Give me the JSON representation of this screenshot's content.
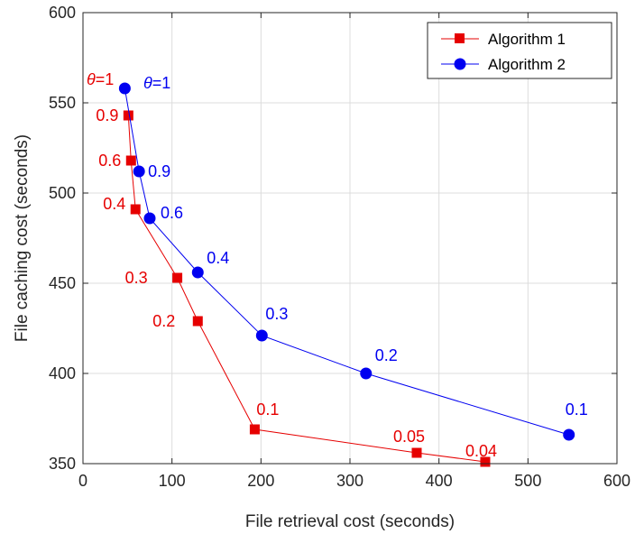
{
  "chart_data": {
    "type": "line",
    "xlabel": "File retrieval cost (seconds)",
    "ylabel": "File caching cost (seconds)",
    "xlim": [
      0,
      600
    ],
    "ylim": [
      350,
      600
    ],
    "xticks": [
      0,
      100,
      200,
      300,
      400,
      500,
      600
    ],
    "yticks": [
      350,
      400,
      450,
      500,
      550,
      600
    ],
    "grid": true,
    "legend_position": "top-right",
    "series": [
      {
        "name": "Algorithm 1",
        "color": "#e60000",
        "marker": "square",
        "x": [
          51,
          54,
          59,
          106,
          129,
          193,
          375,
          452
        ],
        "y": [
          543,
          518,
          491,
          453,
          429,
          369,
          356,
          351
        ],
        "labels": [
          {
            "text": "0.9",
            "dx": -36,
            "dy": 6
          },
          {
            "text": "0.6",
            "dx": -36,
            "dy": 6
          },
          {
            "text": "0.4",
            "dx": -36,
            "dy": 0
          },
          {
            "text": "0.3",
            "dx": -58,
            "dy": 6
          },
          {
            "text": "0.2",
            "dx": -50,
            "dy": 6
          },
          {
            "text": "0.1",
            "dx": 2,
            "dy": -16
          },
          {
            "text": "0.05",
            "dx": -26,
            "dy": -12
          },
          {
            "text": "0.04",
            "dx": -22,
            "dy": -6
          }
        ]
      },
      {
        "name": "Algorithm 2",
        "color": "#0000f0",
        "marker": "circle",
        "x": [
          47,
          63,
          75,
          129,
          201,
          318,
          546
        ],
        "y": [
          558,
          512,
          486,
          456,
          421,
          400,
          366
        ],
        "labels": [
          {
            "text": "0.9",
            "dx": 10,
            "dy": 6
          },
          {
            "text": "0.6",
            "dx": 12,
            "dy": 0
          },
          {
            "text": "0.4",
            "dx": 10,
            "dy": -10
          },
          {
            "text": "0.3",
            "dx": 4,
            "dy": -18
          },
          {
            "text": "0.2",
            "dx": 10,
            "dy": -14
          },
          {
            "text": "0.1",
            "dx": -4,
            "dy": -22
          }
        ]
      }
    ],
    "theta_labels": [
      {
        "prefix": "θ",
        "suffix": "=1",
        "color": "#e60000"
      },
      {
        "prefix": "θ",
        "suffix": "=1",
        "color": "#0000f0"
      }
    ]
  }
}
